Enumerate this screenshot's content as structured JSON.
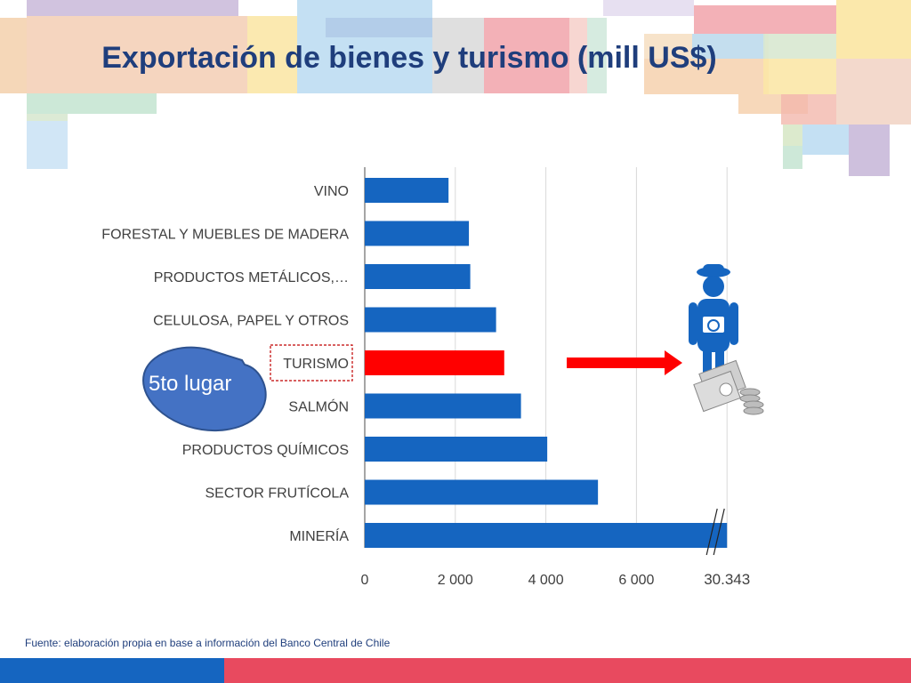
{
  "slide": {
    "title": "Exportación de bienes y turismo (mill US$)",
    "source": "Fuente: elaboración propia en base a información del Banco Central de Chile",
    "callout": "5to lugar"
  },
  "chart_data": {
    "type": "bar",
    "orientation": "horizontal",
    "title": "",
    "categories": [
      "VINO",
      "FORESTAL Y MUEBLES DE MADERA",
      "PRODUCTOS METÁLICOS,…",
      "CELULOSA, PAPEL Y OTROS",
      "TURISMO",
      "SALMÓN",
      "PRODUCTOS QUÍMICOS",
      "SECTOR FRUTÍCOLA",
      "MINERÍA"
    ],
    "values": [
      1850,
      2300,
      2330,
      2900,
      3080,
      3450,
      4030,
      5150,
      30343
    ],
    "highlight_category": "TURISMO",
    "highlight_color": "#FF0000",
    "bar_color": "#1565C0",
    "x_ticks": [
      "0",
      "2 000",
      "4 000",
      "6 000",
      "30.343"
    ],
    "xlim": [
      0,
      8000
    ],
    "axis_break": true,
    "grid": true
  },
  "colors": {
    "title": "#1F3E7C",
    "callout": "#4472C4",
    "bottom_left": "#1565C0",
    "bottom_right": "#E84A5F"
  }
}
